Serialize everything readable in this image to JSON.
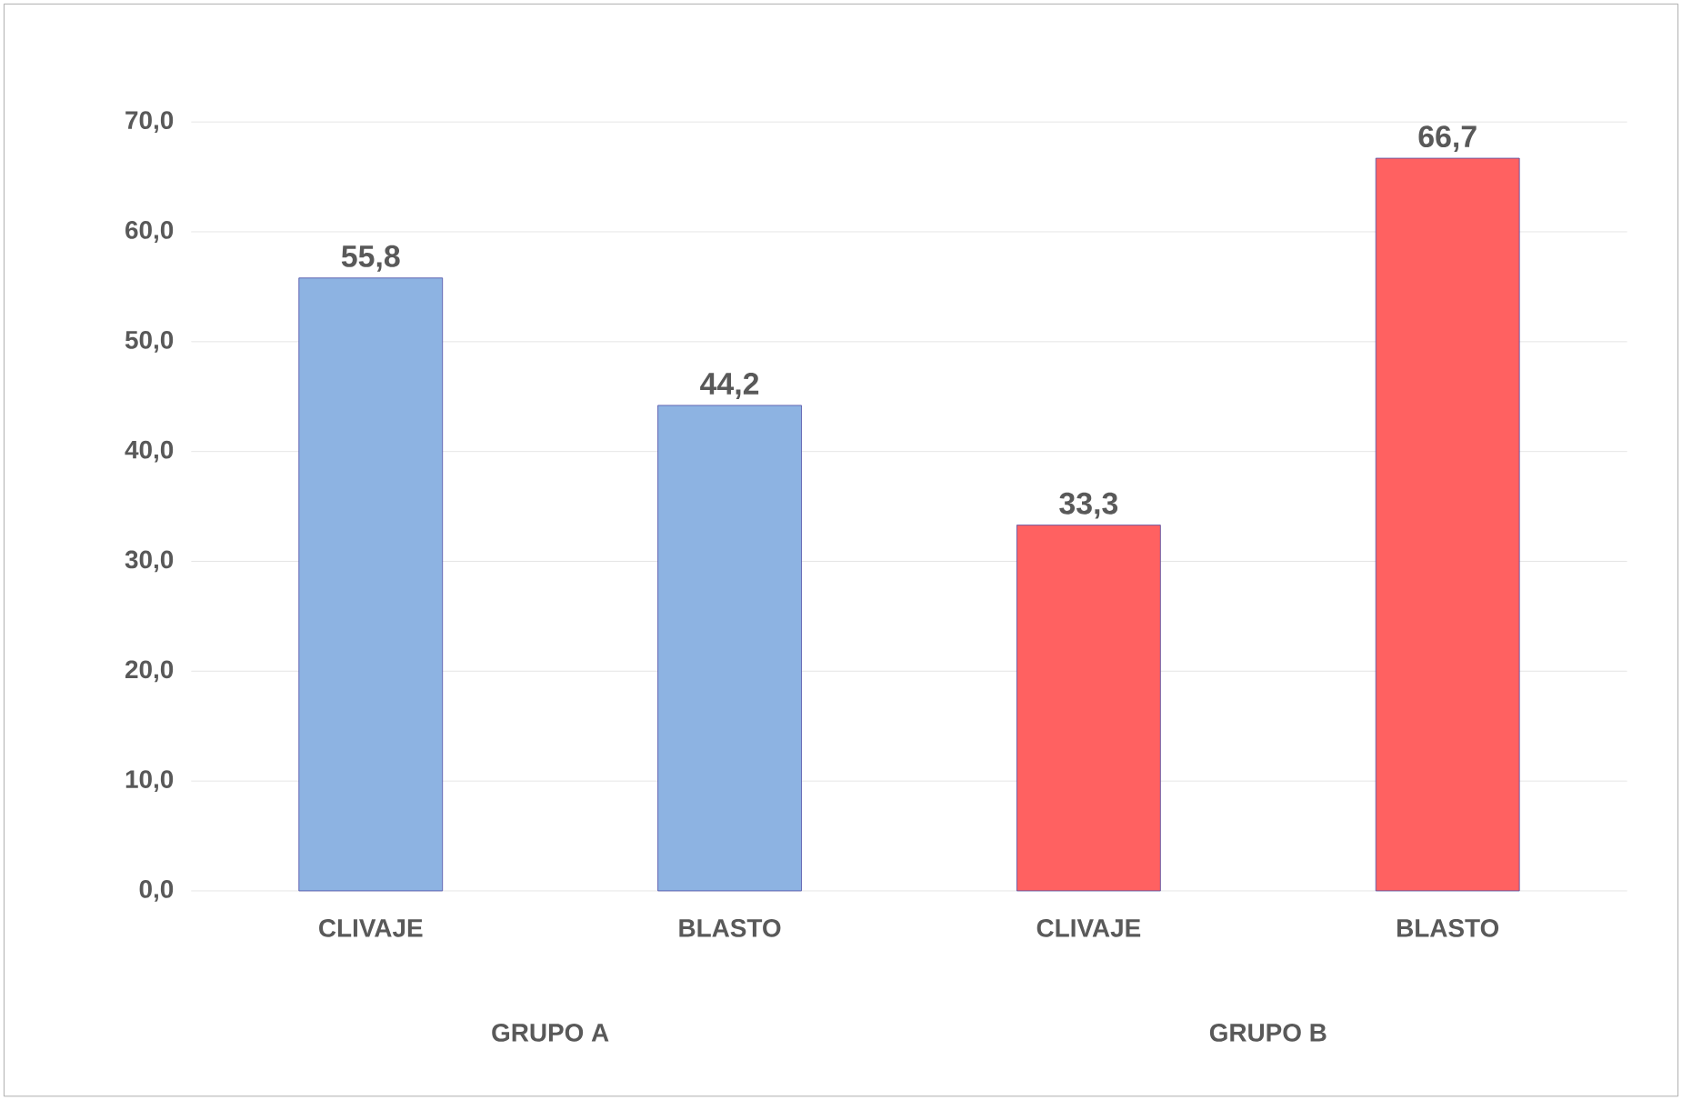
{
  "chart_data": {
    "type": "bar",
    "categories": [
      "CLIVAJE",
      "BLASTO",
      "CLIVAJE",
      "BLASTO"
    ],
    "values": [
      55.8,
      44.2,
      33.3,
      66.7
    ],
    "colors": [
      "#8db3e2",
      "#8db3e2",
      "#ff6161",
      "#ff6161"
    ],
    "value_labels": [
      "55,8",
      "44,2",
      "33,3",
      "66,7"
    ],
    "annotations": [
      "GRUPO A",
      "GRUPO B"
    ],
    "ylim": [
      0,
      70
    ],
    "yticks": [
      {
        "value": 0,
        "label": "0,0"
      },
      {
        "value": 10,
        "label": "10,0"
      },
      {
        "value": 20,
        "label": "20,0"
      },
      {
        "value": 30,
        "label": "30,0"
      },
      {
        "value": 40,
        "label": "40,0"
      },
      {
        "value": 50,
        "label": "50,0"
      },
      {
        "value": 60,
        "label": "60,0"
      },
      {
        "value": 70,
        "label": "70,0"
      }
    ],
    "grid": "y"
  }
}
